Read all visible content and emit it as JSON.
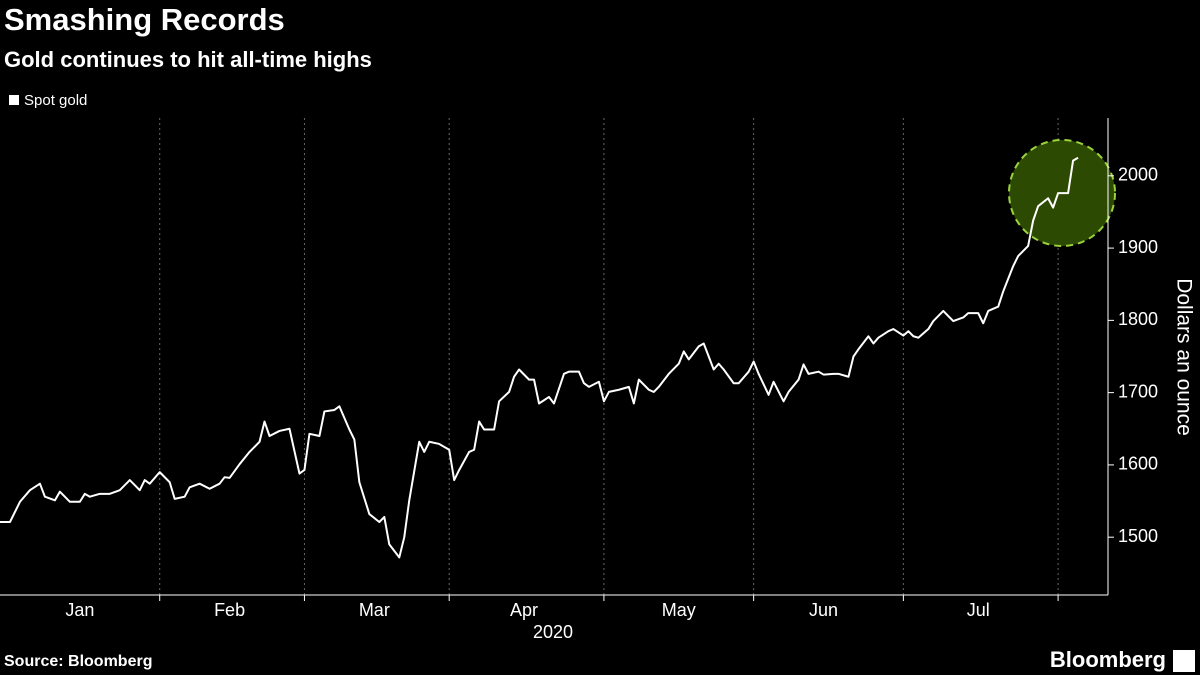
{
  "chart_data": {
    "type": "line",
    "title": "Smashing Records",
    "subtitle": "Gold continues to hit all-time highs",
    "ylabel": "Dollars an ounce",
    "xlabel": "2020",
    "source": "Source: Bloomberg",
    "brand": "Bloomberg",
    "xlim": [
      0,
      222
    ],
    "ylim": [
      1420,
      2080
    ],
    "yticks": [
      1500,
      1600,
      1700,
      1800,
      1900,
      2000
    ],
    "xticks": [
      {
        "value": 16,
        "label": "Jan"
      },
      {
        "value": 46,
        "label": "Feb"
      },
      {
        "value": 75,
        "label": "Mar"
      },
      {
        "value": 105,
        "label": "Apr"
      },
      {
        "value": 136,
        "label": "May"
      },
      {
        "value": 165,
        "label": "Jun"
      },
      {
        "value": 196,
        "label": "Jul"
      }
    ],
    "xgrid": [
      32,
      61,
      90,
      121,
      151,
      181,
      212
    ],
    "grid": true,
    "x": [
      0,
      2,
      4,
      6,
      8,
      9,
      11,
      12,
      14,
      16,
      17,
      18,
      20,
      22,
      24,
      26,
      28,
      29,
      30,
      32,
      34,
      35,
      37,
      38,
      40,
      42,
      44,
      45,
      46,
      48,
      50,
      52,
      53,
      54,
      56,
      58,
      60,
      61,
      62,
      64,
      65,
      67,
      68,
      70,
      71,
      72,
      74,
      76,
      77,
      78,
      80,
      81,
      82,
      84,
      85,
      86,
      88,
      90,
      91,
      92,
      94,
      95,
      96,
      97,
      99,
      100,
      102,
      103,
      104,
      106,
      107,
      108,
      110,
      111,
      113,
      114,
      116,
      117,
      118,
      120,
      121,
      122,
      124,
      126,
      127,
      128,
      130,
      131,
      132,
      134,
      136,
      137,
      138,
      140,
      141,
      143,
      144,
      145,
      147,
      148,
      150,
      151,
      152,
      154,
      155,
      157,
      158,
      160,
      161,
      162,
      164,
      165,
      167,
      168,
      170,
      171,
      172,
      174,
      175,
      176,
      178,
      179,
      181,
      182,
      183,
      184,
      186,
      187,
      189,
      190,
      191,
      193,
      194,
      196,
      197,
      198,
      200,
      201,
      203,
      204,
      206,
      207,
      208,
      210,
      211,
      212,
      214,
      215,
      216
    ],
    "series": [
      {
        "name": "Spot gold",
        "color": "#ffffff",
        "values": [
          1521,
          1521,
          1549,
          1565,
          1574,
          1556,
          1551,
          1563,
          1549,
          1549,
          1560,
          1556,
          1560,
          1560,
          1565,
          1579,
          1565,
          1579,
          1574,
          1590,
          1576,
          1553,
          1556,
          1569,
          1574,
          1567,
          1574,
          1583,
          1582,
          1601,
          1618,
          1632,
          1660,
          1640,
          1647,
          1650,
          1588,
          1593,
          1643,
          1640,
          1674,
          1676,
          1681,
          1649,
          1635,
          1576,
          1532,
          1521,
          1528,
          1490,
          1472,
          1500,
          1551,
          1632,
          1618,
          1632,
          1629,
          1621,
          1579,
          1593,
          1618,
          1621,
          1660,
          1649,
          1649,
          1688,
          1701,
          1722,
          1732,
          1718,
          1718,
          1685,
          1694,
          1685,
          1726,
          1729,
          1729,
          1713,
          1708,
          1715,
          1688,
          1701,
          1704,
          1708,
          1685,
          1718,
          1704,
          1701,
          1708,
          1726,
          1740,
          1757,
          1746,
          1764,
          1768,
          1732,
          1740,
          1732,
          1713,
          1713,
          1729,
          1743,
          1726,
          1697,
          1715,
          1688,
          1701,
          1718,
          1739,
          1726,
          1729,
          1725,
          1726,
          1726,
          1722,
          1750,
          1760,
          1778,
          1768,
          1776,
          1785,
          1788,
          1779,
          1785,
          1778,
          1776,
          1788,
          1799,
          1813,
          1806,
          1799,
          1804,
          1810,
          1810,
          1796,
          1813,
          1819,
          1840,
          1875,
          1889,
          1903,
          1938,
          1958,
          1969,
          1956,
          1976,
          1976,
          2021,
          2025
        ]
      }
    ]
  }
}
